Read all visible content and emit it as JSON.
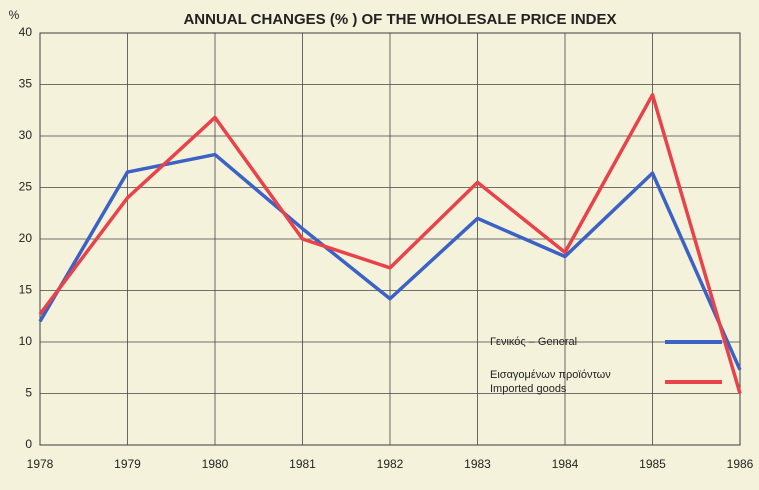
{
  "chart_data": {
    "type": "line",
    "title": "ANNUAL CHANGES (% ) OF THE WHOLESALE PRICE INDEX",
    "y_label": "%",
    "x": [
      1978,
      1979,
      1980,
      1981,
      1982,
      1983,
      1984,
      1985,
      1986
    ],
    "xlim": [
      1978,
      1986
    ],
    "xticks": [
      1978,
      1979,
      1980,
      1981,
      1982,
      1983,
      1984,
      1985,
      1986
    ],
    "ylim": [
      0,
      40
    ],
    "yticks": [
      0,
      5,
      10,
      15,
      20,
      25,
      30,
      35,
      40
    ],
    "grid": true,
    "legend": "lower right",
    "series": [
      {
        "name": "Γενικός – General",
        "color": "#3b62c4",
        "values": [
          12,
          26.5,
          28.2,
          21,
          14.2,
          22,
          18.3,
          26.4,
          7.3
        ]
      },
      {
        "name": "Εισαγομένων προϊόντων\nImported goods",
        "color": "#e8424a",
        "values": [
          12.7,
          24,
          31.8,
          20,
          17.2,
          25.5,
          18.7,
          34,
          5
        ]
      }
    ]
  }
}
